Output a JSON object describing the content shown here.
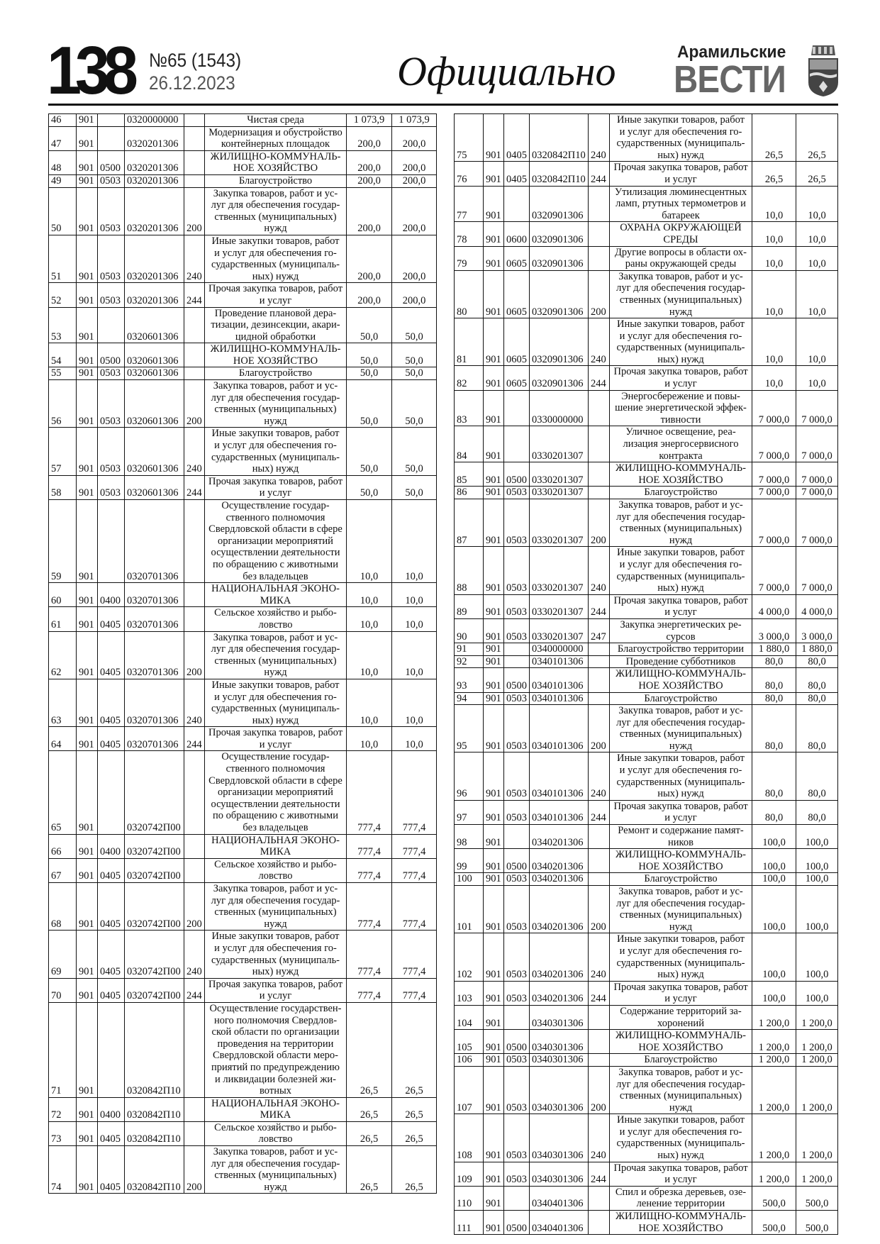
{
  "header": {
    "page_number": "138",
    "issue": "№65 (1543)",
    "date": "26.12.2023",
    "section": "Официально",
    "logo_top": "Арамильские",
    "logo_main": "ВЕСТИ"
  },
  "tables": {
    "left": [
      [
        "46",
        "901",
        "",
        "0320000000",
        "",
        "Чистая среда",
        "1 073,9",
        "1 073,9"
      ],
      [
        "47",
        "901",
        "",
        "0320201306",
        "",
        "Модернизация и обустройство\nконтейнерных площадок",
        "200,0",
        "200,0"
      ],
      [
        "48",
        "901",
        "0500",
        "0320201306",
        "",
        "ЖИЛИЩНО-КОММУНАЛЬ-\nНОЕ ХОЗЯЙСТВО",
        "200,0",
        "200,0"
      ],
      [
        "49",
        "901",
        "0503",
        "0320201306",
        "",
        "Благоустройство",
        "200,0",
        "200,0"
      ],
      [
        "50",
        "901",
        "0503",
        "0320201306",
        "200",
        "Закупка товаров, работ и ус-\nлуг для обеспечения государ-\nственных (муниципальных)\nнужд",
        "200,0",
        "200,0"
      ],
      [
        "51",
        "901",
        "0503",
        "0320201306",
        "240",
        "Иные закупки товаров, работ\nи услуг для обеспечения го-\nсударственных (муниципаль-\nных) нужд",
        "200,0",
        "200,0"
      ],
      [
        "52",
        "901",
        "0503",
        "0320201306",
        "244",
        "Прочая закупка товаров, работ\nи услуг",
        "200,0",
        "200,0"
      ],
      [
        "53",
        "901",
        "",
        "0320601306",
        "",
        "Проведение плановой дера-\nтизации, дезинсекции, акари-\nцидной обработки",
        "50,0",
        "50,0"
      ],
      [
        "54",
        "901",
        "0500",
        "0320601306",
        "",
        "ЖИЛИЩНО-КОММУНАЛЬ-\nНОЕ ХОЗЯЙСТВО",
        "50,0",
        "50,0"
      ],
      [
        "55",
        "901",
        "0503",
        "0320601306",
        "",
        "Благоустройство",
        "50,0",
        "50,0"
      ],
      [
        "56",
        "901",
        "0503",
        "0320601306",
        "200",
        "Закупка товаров, работ и ус-\nлуг для обеспечения государ-\nственных (муниципальных)\nнужд",
        "50,0",
        "50,0"
      ],
      [
        "57",
        "901",
        "0503",
        "0320601306",
        "240",
        "Иные закупки товаров, работ\nи услуг для обеспечения го-\nсударственных (муниципаль-\nных) нужд",
        "50,0",
        "50,0"
      ],
      [
        "58",
        "901",
        "0503",
        "0320601306",
        "244",
        "Прочая закупка товаров, работ\nи услуг",
        "50,0",
        "50,0"
      ],
      [
        "59",
        "901",
        "",
        "0320701306",
        "",
        "Осуществление государ-\nственного полномочия\nСвердловской области в сфере\nорганизации мероприятий\nосуществлении деятельности\nпо обращению с животными\nбез владельцев",
        "10,0",
        "10,0"
      ],
      [
        "60",
        "901",
        "0400",
        "0320701306",
        "",
        "НАЦИОНАЛЬНАЯ ЭКОНО-\nМИКА",
        "10,0",
        "10,0"
      ],
      [
        "61",
        "901",
        "0405",
        "0320701306",
        "",
        "Сельское хозяйство и рыбо-\nловство",
        "10,0",
        "10,0"
      ],
      [
        "62",
        "901",
        "0405",
        "0320701306",
        "200",
        "Закупка товаров, работ и ус-\nлуг для обеспечения государ-\nственных (муниципальных)\nнужд",
        "10,0",
        "10,0"
      ],
      [
        "63",
        "901",
        "0405",
        "0320701306",
        "240",
        "Иные закупки товаров, работ\nи услуг для обеспечения го-\nсударственных (муниципаль-\nных) нужд",
        "10,0",
        "10,0"
      ],
      [
        "64",
        "901",
        "0405",
        "0320701306",
        "244",
        "Прочая закупка товаров, работ\nи услуг",
        "10,0",
        "10,0"
      ],
      [
        "65",
        "901",
        "",
        "0320742П00",
        "",
        "Осуществление государ-\nственного полномочия\nСвердловской области в сфере\nорганизации мероприятий\nосуществлении деятельности\nпо обращению с животными\nбез владельцев",
        "777,4",
        "777,4"
      ],
      [
        "66",
        "901",
        "0400",
        "0320742П00",
        "",
        "НАЦИОНАЛЬНАЯ ЭКОНО-\nМИКА",
        "777,4",
        "777,4"
      ],
      [
        "67",
        "901",
        "0405",
        "0320742П00",
        "",
        "Сельское хозяйство и рыбо-\nловство",
        "777,4",
        "777,4"
      ],
      [
        "68",
        "901",
        "0405",
        "0320742П00",
        "200",
        "Закупка товаров, работ и ус-\nлуг для обеспечения государ-\nственных (муниципальных)\nнужд",
        "777,4",
        "777,4"
      ],
      [
        "69",
        "901",
        "0405",
        "0320742П00",
        "240",
        "Иные закупки товаров, работ\nи услуг для обеспечения го-\nсударственных (муниципаль-\nных) нужд",
        "777,4",
        "777,4"
      ],
      [
        "70",
        "901",
        "0405",
        "0320742П00",
        "244",
        "Прочая закупка товаров, работ\nи услуг",
        "777,4",
        "777,4"
      ],
      [
        "71",
        "901",
        "",
        "0320842П10",
        "",
        "Осуществление государствен-\nного полномочия Свердлов-\nской области по организации\nпроведения на территории\nСвердловской области меро-\nприятий по предупреждению\nи ликвидации болезней жи-\nвотных",
        "26,5",
        "26,5"
      ],
      [
        "72",
        "901",
        "0400",
        "0320842П10",
        "",
        "НАЦИОНАЛЬНАЯ ЭКОНО-\nМИКА",
        "26,5",
        "26,5"
      ],
      [
        "73",
        "901",
        "0405",
        "0320842П10",
        "",
        "Сельское хозяйство и рыбо-\nловство",
        "26,5",
        "26,5"
      ],
      [
        "74",
        "901",
        "0405",
        "0320842П10",
        "200",
        "Закупка товаров, работ и ус-\nлуг для обеспечения государ-\nственных (муниципальных)\nнужд",
        "26,5",
        "26,5"
      ]
    ],
    "right": [
      [
        "75",
        "901",
        "0405",
        "0320842П10",
        "240",
        "Иные закупки товаров, работ\nи услуг для обеспечения го-\nсударственных (муниципаль-\nных) нужд",
        "26,5",
        "26,5"
      ],
      [
        "76",
        "901",
        "0405",
        "0320842П10",
        "244",
        "Прочая закупка товаров, работ\nи услуг",
        "26,5",
        "26,5"
      ],
      [
        "77",
        "901",
        "",
        "0320901306",
        "",
        "Утилизация люминесцентных\nламп, ртутных термометров и\nбатареек",
        "10,0",
        "10,0"
      ],
      [
        "78",
        "901",
        "0600",
        "0320901306",
        "",
        "ОХРАНА ОКРУЖАЮЩЕЙ\nСРЕДЫ",
        "10,0",
        "10,0"
      ],
      [
        "79",
        "901",
        "0605",
        "0320901306",
        "",
        "Другие вопросы в области ох-\nраны окружающей среды",
        "10,0",
        "10,0"
      ],
      [
        "80",
        "901",
        "0605",
        "0320901306",
        "200",
        "Закупка товаров, работ и ус-\nлуг для обеспечения государ-\nственных (муниципальных)\nнужд",
        "10,0",
        "10,0"
      ],
      [
        "81",
        "901",
        "0605",
        "0320901306",
        "240",
        "Иные закупки товаров, работ\nи услуг для обеспечения го-\nсударственных (муниципаль-\nных) нужд",
        "10,0",
        "10,0"
      ],
      [
        "82",
        "901",
        "0605",
        "0320901306",
        "244",
        "Прочая закупка товаров, работ\nи услуг",
        "10,0",
        "10,0"
      ],
      [
        "83",
        "901",
        "",
        "0330000000",
        "",
        "Энергосбережение и повы-\nшение энергетической эффек-\nтивности",
        "7 000,0",
        "7 000,0"
      ],
      [
        "84",
        "901",
        "",
        "0330201307",
        "",
        "Уличное освещение, реа-\nлизация энергосервисного\nконтракта",
        "7 000,0",
        "7 000,0"
      ],
      [
        "85",
        "901",
        "0500",
        "0330201307",
        "",
        "ЖИЛИЩНО-КОММУНАЛЬ-\nНОЕ ХОЗЯЙСТВО",
        "7 000,0",
        "7 000,0"
      ],
      [
        "86",
        "901",
        "0503",
        "0330201307",
        "",
        "Благоустройство",
        "7 000,0",
        "7 000,0"
      ],
      [
        "87",
        "901",
        "0503",
        "0330201307",
        "200",
        "Закупка товаров, работ и ус-\nлуг для обеспечения государ-\nственных (муниципальных)\nнужд",
        "7 000,0",
        "7 000,0"
      ],
      [
        "88",
        "901",
        "0503",
        "0330201307",
        "240",
        "Иные закупки товаров, работ\nи услуг для обеспечения го-\nсударственных (муниципаль-\nных) нужд",
        "7 000,0",
        "7 000,0"
      ],
      [
        "89",
        "901",
        "0503",
        "0330201307",
        "244",
        "Прочая закупка товаров, работ\nи услуг",
        "4 000,0",
        "4 000,0"
      ],
      [
        "90",
        "901",
        "0503",
        "0330201307",
        "247",
        "Закупка энергетических ре-\nсурсов",
        "3 000,0",
        "3 000,0"
      ],
      [
        "91",
        "901",
        "",
        "0340000000",
        "",
        "Благоустройство территории",
        "1 880,0",
        "1 880,0"
      ],
      [
        "92",
        "901",
        "",
        "0340101306",
        "",
        "Проведение субботников",
        "80,0",
        "80,0"
      ],
      [
        "93",
        "901",
        "0500",
        "0340101306",
        "",
        "ЖИЛИЩНО-КОММУНАЛЬ-\nНОЕ ХОЗЯЙСТВО",
        "80,0",
        "80,0"
      ],
      [
        "94",
        "901",
        "0503",
        "0340101306",
        "",
        "Благоустройство",
        "80,0",
        "80,0"
      ],
      [
        "95",
        "901",
        "0503",
        "0340101306",
        "200",
        "Закупка товаров, работ и ус-\nлуг для обеспечения государ-\nственных (муниципальных)\nнужд",
        "80,0",
        "80,0"
      ],
      [
        "96",
        "901",
        "0503",
        "0340101306",
        "240",
        "Иные закупки товаров, работ\nи услуг для обеспечения го-\nсударственных (муниципаль-\nных) нужд",
        "80,0",
        "80,0"
      ],
      [
        "97",
        "901",
        "0503",
        "0340101306",
        "244",
        "Прочая закупка товаров, работ\nи услуг",
        "80,0",
        "80,0"
      ],
      [
        "98",
        "901",
        "",
        "0340201306",
        "",
        "Ремонт и содержание памят-\nников",
        "100,0",
        "100,0"
      ],
      [
        "99",
        "901",
        "0500",
        "0340201306",
        "",
        "ЖИЛИЩНО-КОММУНАЛЬ-\nНОЕ ХОЗЯЙСТВО",
        "100,0",
        "100,0"
      ],
      [
        "100",
        "901",
        "0503",
        "0340201306",
        "",
        "Благоустройство",
        "100,0",
        "100,0"
      ],
      [
        "101",
        "901",
        "0503",
        "0340201306",
        "200",
        "Закупка товаров, работ и ус-\nлуг для обеспечения государ-\nственных (муниципальных)\nнужд",
        "100,0",
        "100,0"
      ],
      [
        "102",
        "901",
        "0503",
        "0340201306",
        "240",
        "Иные закупки товаров, работ\nи услуг для обеспечения го-\nсударственных (муниципаль-\nных) нужд",
        "100,0",
        "100,0"
      ],
      [
        "103",
        "901",
        "0503",
        "0340201306",
        "244",
        "Прочая закупка товаров, работ\nи услуг",
        "100,0",
        "100,0"
      ],
      [
        "104",
        "901",
        "",
        "0340301306",
        "",
        "Содержание территорий за-\nхоронений",
        "1 200,0",
        "1 200,0"
      ],
      [
        "105",
        "901",
        "0500",
        "0340301306",
        "",
        "ЖИЛИЩНО-КОММУНАЛЬ-\nНОЕ ХОЗЯЙСТВО",
        "1 200,0",
        "1 200,0"
      ],
      [
        "106",
        "901",
        "0503",
        "0340301306",
        "",
        "Благоустройство",
        "1 200,0",
        "1 200,0"
      ],
      [
        "107",
        "901",
        "0503",
        "0340301306",
        "200",
        "Закупка товаров, работ и ус-\nлуг для обеспечения государ-\nственных (муниципальных)\nнужд",
        "1 200,0",
        "1 200,0"
      ],
      [
        "108",
        "901",
        "0503",
        "0340301306",
        "240",
        "Иные закупки товаров, работ\nи услуг для обеспечения го-\nсударственных (муниципаль-\nных) нужд",
        "1 200,0",
        "1 200,0"
      ],
      [
        "109",
        "901",
        "0503",
        "0340301306",
        "244",
        "Прочая закупка товаров, работ\nи услуг",
        "1 200,0",
        "1 200,0"
      ],
      [
        "110",
        "901",
        "",
        "0340401306",
        "",
        "Спил и обрезка деревьев, озе-\nленение территории",
        "500,0",
        "500,0"
      ],
      [
        "111",
        "901",
        "0500",
        "0340401306",
        "",
        "ЖИЛИЩНО-КОММУНАЛЬ-\nНОЕ ХОЗЯЙСТВО",
        "500,0",
        "500,0"
      ]
    ]
  }
}
